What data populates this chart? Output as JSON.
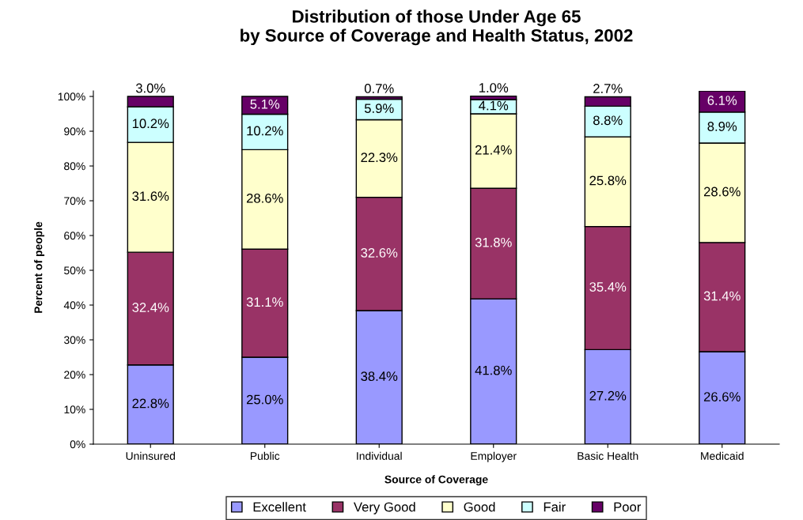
{
  "chart_data": {
    "type": "bar",
    "stacked": true,
    "title": "Distribution of those Under Age 65\nby Source of Coverage and Health Status, 2002",
    "xlabel": "Source of Coverage",
    "ylabel": "Percent of people",
    "categories": [
      "Uninsured",
      "Public",
      "Individual",
      "Employer",
      "Basic Health",
      "Medicaid"
    ],
    "series": [
      {
        "name": "Excellent",
        "color": "#9999ff",
        "values": [
          22.8,
          25.0,
          38.4,
          41.8,
          27.2,
          26.6
        ],
        "value_labels": [
          "22.8%",
          "25.0%",
          "38.4%",
          "41.8%",
          "27.2%",
          "26.6%"
        ]
      },
      {
        "name": "Very Good",
        "color": "#993366",
        "values": [
          32.4,
          31.1,
          32.6,
          31.8,
          35.4,
          31.4
        ],
        "value_labels": [
          "32.4%",
          "31.1%",
          "32.6%",
          "31.8%",
          "35.4%",
          "31.4%"
        ]
      },
      {
        "name": "Good",
        "color": "#ffffcc",
        "values": [
          31.6,
          28.6,
          22.3,
          21.4,
          25.8,
          28.6
        ],
        "value_labels": [
          "31.6%",
          "28.6%",
          "22.3%",
          "21.4%",
          "25.8%",
          "28.6%"
        ]
      },
      {
        "name": "Fair",
        "color": "#ccffff",
        "values": [
          10.2,
          10.2,
          5.9,
          4.1,
          8.8,
          8.9
        ],
        "value_labels": [
          "10.2%",
          "10.2%",
          "5.9%",
          "4.1%",
          "8.8%",
          "8.9%"
        ]
      },
      {
        "name": "Poor",
        "color": "#660066",
        "values": [
          3.0,
          5.1,
          0.7,
          1.0,
          2.7,
          6.1
        ],
        "value_labels": [
          "3.0%",
          "5.1%",
          "0.7%",
          "1.0%",
          "2.7%",
          "6.1%"
        ]
      }
    ],
    "ylim": [
      0,
      101.6
    ],
    "yticks": [
      {
        "value": 0,
        "label": "0%"
      },
      {
        "value": 10,
        "label": "10%"
      },
      {
        "value": 20,
        "label": "20%"
      },
      {
        "value": 30,
        "label": "30%"
      },
      {
        "value": 40,
        "label": "40%"
      },
      {
        "value": 50,
        "label": "50%"
      },
      {
        "value": 60,
        "label": "60%"
      },
      {
        "value": 70,
        "label": "70%"
      },
      {
        "value": 80,
        "label": "80%"
      },
      {
        "value": 90,
        "label": "90%"
      },
      {
        "value": 100,
        "label": "100%"
      }
    ],
    "grid": false,
    "legend": "bottom"
  }
}
